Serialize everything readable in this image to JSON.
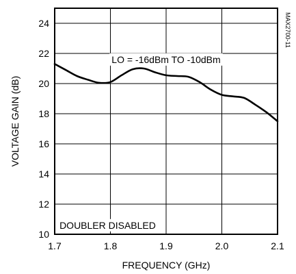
{
  "chart_data": {
    "type": "line",
    "title": "",
    "xlabel": "FREQUENCY (GHz)",
    "ylabel": "VOLTAGE GAIN (dB)",
    "xlim": [
      1.7,
      2.1
    ],
    "ylim": [
      10,
      25
    ],
    "x_ticks": [
      "1.7",
      "1.8",
      "1.9",
      "2.0",
      "2.1"
    ],
    "y_ticks": [
      "10",
      "12",
      "14",
      "16",
      "18",
      "20",
      "22",
      "24"
    ],
    "grid": true,
    "series": [
      {
        "x": [
          1.7,
          1.72,
          1.74,
          1.76,
          1.78,
          1.8,
          1.82,
          1.84,
          1.86,
          1.88,
          1.9,
          1.92,
          1.94,
          1.96,
          1.98,
          2.0,
          2.02,
          2.04,
          2.06,
          2.08,
          2.1
        ],
        "y": [
          21.3,
          20.9,
          20.5,
          20.25,
          20.05,
          20.1,
          20.55,
          20.95,
          21.0,
          20.75,
          20.55,
          20.5,
          20.45,
          20.1,
          19.6,
          19.25,
          19.15,
          19.05,
          18.6,
          18.1,
          17.5
        ]
      }
    ],
    "annotations": [
      {
        "text": "LO = -16dBm TO -10dBm",
        "x": 1.9,
        "y": 21.6
      },
      {
        "text": "DOUBLER DISABLED",
        "x": 1.705,
        "y": 10.6
      }
    ],
    "figure_code": "MAX2700-11"
  }
}
